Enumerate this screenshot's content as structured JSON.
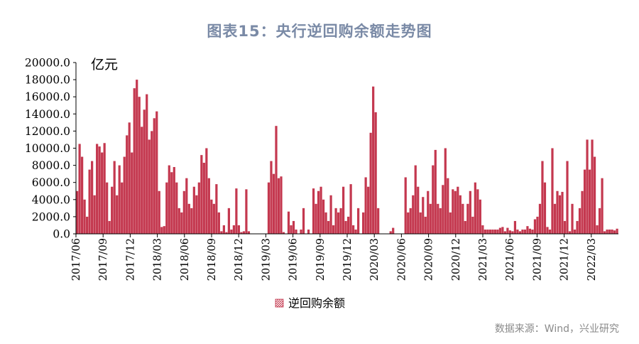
{
  "title": "图表15：央行逆回购余额走势图",
  "source": "数据来源：Wind，兴业研究",
  "unit_label": "亿元",
  "colors": {
    "bar": "#c4384f",
    "axis": "#000000",
    "title": "#7a8aa6"
  },
  "chart_data": {
    "type": "bar",
    "title": "图表15：央行逆回购余额走势图",
    "ylabel": "亿元",
    "ylim": [
      0,
      20000
    ],
    "yticks": [
      "0.0",
      "2000.0",
      "4000.0",
      "6000.0",
      "8000.0",
      "10000.0",
      "12000.0",
      "14000.0",
      "16000.0",
      "18000.0",
      "20000.0"
    ],
    "xticks": [
      "2017/06",
      "2017/09",
      "2017/12",
      "2018/03",
      "2018/06",
      "2018/09",
      "2018/12",
      "2019/03",
      "2019/06",
      "2019/09",
      "2019/12",
      "2020/03",
      "2020/06",
      "2020/09",
      "2020/12",
      "2021/03",
      "2021/06",
      "2021/09",
      "2021/12",
      "2022/03"
    ],
    "x_start": "2017/06",
    "x_end": "2022/05",
    "grid": false,
    "legend_position": "bottom",
    "series": [
      {
        "name": "逆回购余额",
        "values": [
          5000,
          10500,
          9000,
          4000,
          2000,
          7500,
          8500,
          4500,
          10500,
          10200,
          9500,
          10600,
          6000,
          1500,
          5500,
          8500,
          4500,
          8000,
          6000,
          9000,
          11500,
          13000,
          9500,
          17000,
          18000,
          16000,
          12500,
          14500,
          16300,
          11000,
          12000,
          13500,
          14300,
          5000,
          800,
          900,
          6000,
          8000,
          7200,
          7800,
          6000,
          3000,
          2500,
          5000,
          6500,
          3500,
          3000,
          5500,
          4500,
          6000,
          9200,
          8300,
          10000,
          6500,
          4000,
          3500,
          5800,
          2500,
          300,
          1000,
          200,
          3000,
          500,
          1000,
          5300,
          1000,
          200,
          300,
          5200,
          300,
          0,
          0,
          0,
          0,
          0,
          0,
          0,
          6000,
          8500,
          7000,
          12600,
          6500,
          6700,
          200,
          0,
          2600,
          1000,
          1500,
          500,
          0,
          500,
          3000,
          0,
          500,
          0,
          5300,
          3500,
          5000,
          5500,
          4000,
          2500,
          1500,
          4500,
          1000,
          3000,
          2500,
          3000,
          5500,
          1500,
          2000,
          5800,
          1000,
          500,
          3000,
          0,
          2500,
          6600,
          5500,
          11800,
          17200,
          14200,
          3000,
          0,
          0,
          0,
          0,
          300,
          700,
          0,
          0,
          0,
          0,
          6600,
          2500,
          3000,
          4500,
          8000,
          5500,
          2500,
          4300,
          2000,
          5000,
          3500,
          8000,
          9800,
          3500,
          3000,
          5700,
          10000,
          6500,
          2500,
          5200,
          5000,
          5500,
          4500,
          3500,
          1500,
          3500,
          5000,
          2000,
          6000,
          5200,
          4000,
          1000,
          500,
          500,
          500,
          500,
          500,
          500,
          700,
          800,
          300,
          700,
          400,
          300,
          1500,
          500,
          300,
          500,
          500,
          900,
          600,
          500,
          1700,
          2000,
          3500,
          8500,
          6000,
          800,
          500,
          10000,
          3500,
          5000,
          4500,
          4900,
          1500,
          8500,
          300,
          3500,
          500,
          1500,
          3000,
          5000,
          7500,
          11000,
          7500,
          11000,
          9000,
          1000,
          3000,
          6500,
          300,
          500,
          500,
          500,
          400,
          600
        ]
      }
    ]
  },
  "legend": {
    "label": "逆回购余额"
  }
}
